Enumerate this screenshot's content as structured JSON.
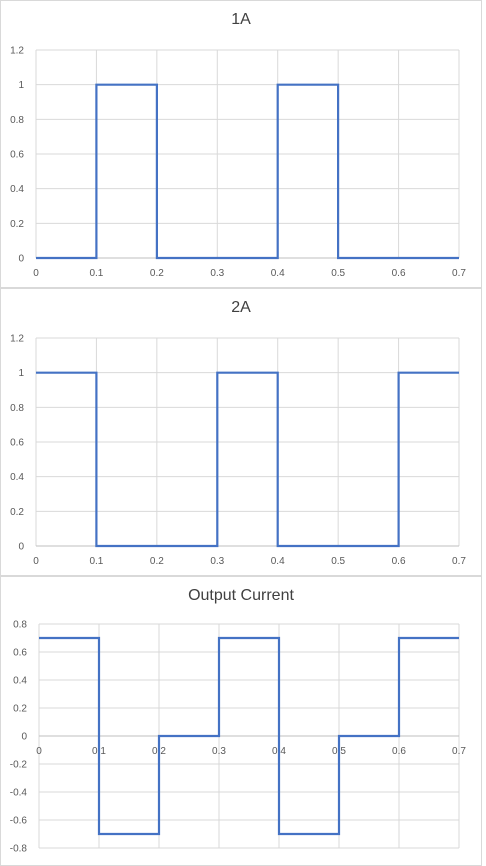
{
  "chart_data": [
    {
      "type": "line",
      "title": "1A",
      "x": [
        0,
        0.1,
        0.1,
        0.2,
        0.2,
        0.4,
        0.4,
        0.5,
        0.5,
        0.7
      ],
      "series": [
        {
          "values": [
            0,
            0,
            1,
            1,
            0,
            0,
            1,
            1,
            0,
            0
          ]
        }
      ],
      "xlim": [
        0,
        0.7
      ],
      "ylim": [
        0,
        1.2
      ],
      "xticks": [
        "0",
        "0.1",
        "0.2",
        "0.3",
        "0.4",
        "0.5",
        "0.6",
        "0.7"
      ],
      "yticks": [
        "0",
        "0.2",
        "0.4",
        "0.6",
        "0.8",
        "1",
        "1.2"
      ],
      "grid": true,
      "line_color": "#4472c4"
    },
    {
      "type": "line",
      "title": "2A",
      "x": [
        0,
        0.1,
        0.1,
        0.3,
        0.3,
        0.4,
        0.4,
        0.6,
        0.6,
        0.7
      ],
      "series": [
        {
          "values": [
            1,
            1,
            0,
            0,
            1,
            1,
            0,
            0,
            1,
            1
          ]
        }
      ],
      "xlim": [
        0,
        0.7
      ],
      "ylim": [
        0,
        1.2
      ],
      "xticks": [
        "0",
        "0.1",
        "0.2",
        "0.3",
        "0.4",
        "0.5",
        "0.6",
        "0.7"
      ],
      "yticks": [
        "0",
        "0.2",
        "0.4",
        "0.6",
        "0.8",
        "1",
        "1.2"
      ],
      "grid": true,
      "line_color": "#4472c4"
    },
    {
      "type": "line",
      "title": "Output Current",
      "x": [
        0,
        0.1,
        0.1,
        0.2,
        0.2,
        0.3,
        0.3,
        0.4,
        0.4,
        0.5,
        0.5,
        0.6,
        0.6,
        0.7
      ],
      "series": [
        {
          "values": [
            0.7,
            0.7,
            -0.7,
            -0.7,
            0,
            0,
            0.7,
            0.7,
            -0.7,
            -0.7,
            0,
            0,
            0.7,
            0.7
          ]
        }
      ],
      "xlim": [
        0,
        0.7
      ],
      "ylim": [
        -0.8,
        0.8
      ],
      "xticks": [
        "0",
        "0.1",
        "0.2",
        "0.3",
        "0.4",
        "0.5",
        "0.6",
        "0.7"
      ],
      "yticks": [
        "-0.8",
        "-0.6",
        "-0.4",
        "-0.2",
        "0",
        "0.2",
        "0.4",
        "0.6",
        "0.8"
      ],
      "grid": true,
      "line_color": "#4472c4"
    }
  ]
}
